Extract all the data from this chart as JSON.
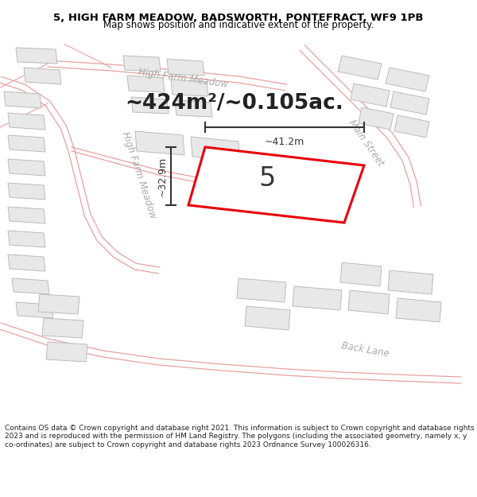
{
  "title_line1": "5, HIGH FARM MEADOW, BADSWORTH, PONTEFRACT, WF9 1PB",
  "title_line2": "Map shows position and indicative extent of the property.",
  "area_text": "~424m²/~0.105ac.",
  "plot_number": "5",
  "dim_horizontal": "~41.2m",
  "dim_vertical": "~32.9m",
  "footer_text": "Contains OS data © Crown copyright and database right 2021. This information is subject to Crown copyright and database rights 2023 and is reproduced with the permission of HM Land Registry. The polygons (including the associated geometry, namely x, y co-ordinates) are subject to Crown copyright and database rights 2023 Ordnance Survey 100026316.",
  "map_bg": "#f7f6f4",
  "plot_fill": "#ffffff",
  "plot_edge": "#e8000a",
  "road_outline_color": "#e8a0a0",
  "building_fill": "#e8e8e8",
  "building_edge": "#bbbbbb",
  "street_label_color": "#aaaaaa",
  "dim_line_color": "#333333",
  "title_bg": "#ffffff",
  "footer_bg": "#ffffff",
  "area_text_color": "#222222",
  "plot_label_color": "#333333"
}
